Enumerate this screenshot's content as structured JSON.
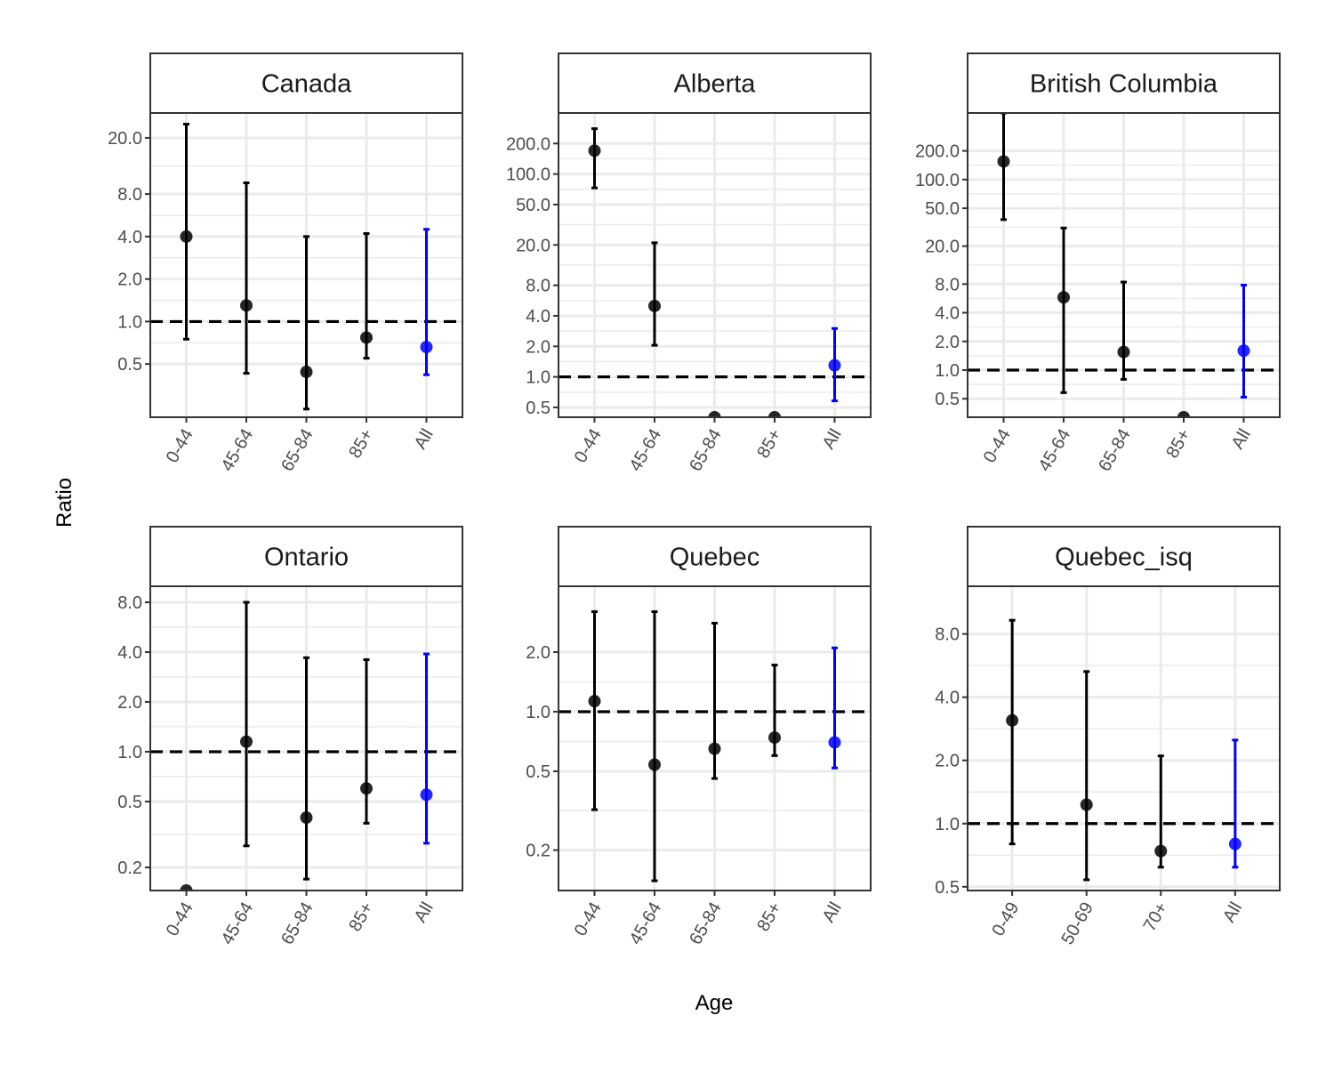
{
  "chart_data": {
    "type": "scatter",
    "subtype": "point-with-error-bars, faceted",
    "xlabel": "Age",
    "ylabel": "Ratio",
    "y_scale": "log",
    "reference_line": 1.0,
    "grid": true,
    "colors": {
      "age_group": "#000000",
      "all": "#0000ff",
      "reference": "#000000",
      "grid": "#ebebeb"
    },
    "panels": [
      {
        "title": "Canada",
        "categories": [
          "0-44",
          "45-64",
          "65-84",
          "85+",
          "All"
        ],
        "yticks": [
          "20.0",
          "8.0",
          "4.0",
          "2.0",
          "1.0",
          "0.5"
        ],
        "ylim": [
          0.21,
          30
        ],
        "points": [
          {
            "x": "0-44",
            "y": 4.0,
            "lower": 0.75,
            "upper": 25
          },
          {
            "x": "45-64",
            "y": 1.3,
            "lower": 0.43,
            "upper": 9.6
          },
          {
            "x": "65-84",
            "y": 0.44,
            "lower": 0.24,
            "upper": 4.0
          },
          {
            "x": "85+",
            "y": 0.77,
            "lower": 0.55,
            "upper": 4.2
          },
          {
            "x": "All",
            "y": 0.66,
            "lower": 0.42,
            "upper": 4.5
          }
        ]
      },
      {
        "title": "Alberta",
        "categories": [
          "0-44",
          "45-64",
          "65-84",
          "85+",
          "All"
        ],
        "yticks": [
          "200.0",
          "100.0",
          "50.0",
          "20.0",
          "8.0",
          "4.0",
          "2.0",
          "1.0",
          "0.5"
        ],
        "ylim": [
          0.4,
          400
        ],
        "points": [
          {
            "x": "0-44",
            "y": 170,
            "lower": 73,
            "upper": 280
          },
          {
            "x": "45-64",
            "y": 5.0,
            "lower": 2.05,
            "upper": 21
          },
          {
            "x": "65-84",
            "y": 0.4
          },
          {
            "x": "85+",
            "y": 0.4
          },
          {
            "x": "All",
            "y": 1.3,
            "lower": 0.58,
            "upper": 3.0
          }
        ]
      },
      {
        "title": "British Columbia",
        "categories": [
          "0-44",
          "45-64",
          "65-84",
          "85+",
          "All"
        ],
        "yticks": [
          "200.0",
          "100.0",
          "50.0",
          "20.0",
          "8.0",
          "4.0",
          "2.0",
          "1.0",
          "0.5"
        ],
        "ylim": [
          0.32,
          500
        ],
        "points": [
          {
            "x": "0-44",
            "y": 155,
            "lower": 38,
            "upper": 500
          },
          {
            "x": "45-64",
            "y": 5.8,
            "lower": 0.58,
            "upper": 31
          },
          {
            "x": "65-84",
            "y": 1.55,
            "lower": 0.8,
            "upper": 8.4
          },
          {
            "x": "85+",
            "y": 0.32
          },
          {
            "x": "All",
            "y": 1.6,
            "lower": 0.52,
            "upper": 7.8
          }
        ]
      },
      {
        "title": "Ontario",
        "categories": [
          "0-44",
          "45-64",
          "65-84",
          "85+",
          "All"
        ],
        "yticks": [
          "8.0",
          "4.0",
          "2.0",
          "1.0",
          "0.5",
          "0.2"
        ],
        "ylim": [
          0.145,
          10
        ],
        "points": [
          {
            "x": "0-44",
            "y": 0.145
          },
          {
            "x": "45-64",
            "y": 1.15,
            "lower": 0.27,
            "upper": 8.0
          },
          {
            "x": "65-84",
            "y": 0.4,
            "lower": 0.17,
            "upper": 3.7
          },
          {
            "x": "85+",
            "y": 0.6,
            "lower": 0.37,
            "upper": 3.6
          },
          {
            "x": "All",
            "y": 0.55,
            "lower": 0.28,
            "upper": 3.9
          }
        ]
      },
      {
        "title": "Quebec",
        "categories": [
          "0-44",
          "45-64",
          "65-84",
          "85+",
          "All"
        ],
        "yticks": [
          "2.0",
          "1.0",
          "0.5",
          "0.2"
        ],
        "ylim": [
          0.125,
          4.3
        ],
        "points": [
          {
            "x": "0-44",
            "y": 1.13,
            "lower": 0.32,
            "upper": 3.2
          },
          {
            "x": "45-64",
            "y": 0.54,
            "lower": 0.14,
            "upper": 3.2
          },
          {
            "x": "65-84",
            "y": 0.65,
            "lower": 0.46,
            "upper": 2.8
          },
          {
            "x": "85+",
            "y": 0.74,
            "lower": 0.6,
            "upper": 1.72
          },
          {
            "x": "All",
            "y": 0.7,
            "lower": 0.52,
            "upper": 2.1
          }
        ]
      },
      {
        "title": "Quebec_isq",
        "categories": [
          "0-49",
          "50-69",
          "70+",
          "All"
        ],
        "yticks": [
          "8.0",
          "4.0",
          "2.0",
          "1.0",
          "0.5"
        ],
        "ylim": [
          0.48,
          13.5
        ],
        "points": [
          {
            "x": "0-49",
            "y": 3.1,
            "lower": 0.8,
            "upper": 9.3
          },
          {
            "x": "50-69",
            "y": 1.23,
            "lower": 0.54,
            "upper": 5.3
          },
          {
            "x": "70+",
            "y": 0.74,
            "lower": 0.62,
            "upper": 2.1
          },
          {
            "x": "All",
            "y": 0.8,
            "lower": 0.62,
            "upper": 2.5
          }
        ]
      }
    ]
  }
}
